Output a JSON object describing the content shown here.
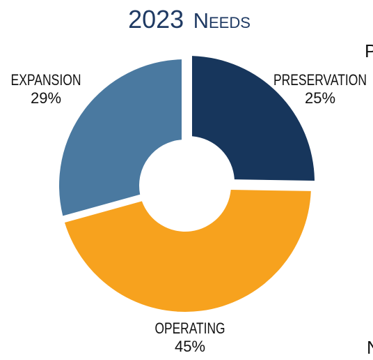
{
  "chart_data": {
    "type": "pie",
    "variant": "donut",
    "title_main": "2023",
    "title_smallcaps": "Needs",
    "slices": [
      {
        "label": "PRESERVATION",
        "value": 25,
        "display": "25%",
        "color": "#17365c"
      },
      {
        "label": "OPERATING",
        "value": 45,
        "display": "45%",
        "color": "#f7a21e"
      },
      {
        "label": "EXPANSION",
        "value": 29,
        "display": "29%",
        "color": "#4a79a0"
      }
    ]
  },
  "edge_glyphs": {
    "top_right": "P",
    "bottom_right": "N"
  }
}
